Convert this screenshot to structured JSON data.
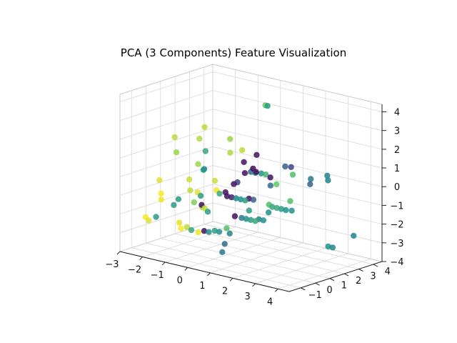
{
  "chart_data": {
    "type": "scatter",
    "title": "PCA (3 Components) Feature Visualization",
    "xlabel": "",
    "ylabel": "",
    "zlabel": "",
    "x_ticks": [
      "−3",
      "−2",
      "−1",
      "0",
      "1",
      "2",
      "3",
      "4"
    ],
    "y_ticks": [
      "−1",
      "0",
      "1",
      "2",
      "3",
      "4"
    ],
    "z_ticks": [
      "−4",
      "−3",
      "−2",
      "−1",
      "0",
      "1",
      "2",
      "3",
      "4"
    ],
    "xlim": [
      -3,
      4.5
    ],
    "ylim": [
      -1.8,
      4.6
    ],
    "zlim": [
      -4,
      4.4
    ],
    "grid": true,
    "colormap": "viridis",
    "marker_alpha": 0.85,
    "points": [
      {
        "x": -2.5,
        "y": 1.2,
        "z": 1.5,
        "c": 0.9
      },
      {
        "x": -2.3,
        "y": 1.0,
        "z": 0.8,
        "c": 0.85
      },
      {
        "x": -2.6,
        "y": 0.3,
        "z": -0.6,
        "c": 0.95
      },
      {
        "x": -2.4,
        "y": 0.1,
        "z": -1.2,
        "c": 1.0
      },
      {
        "x": -2.2,
        "y": -0.2,
        "z": -1.4,
        "c": 0.98
      },
      {
        "x": -2.7,
        "y": -0.5,
        "z": -2.4,
        "c": 1.0
      },
      {
        "x": -2.5,
        "y": -0.6,
        "z": -2.5,
        "c": 0.95
      },
      {
        "x": -2.3,
        "y": -0.4,
        "z": -2.3,
        "c": 0.55
      },
      {
        "x": -1.6,
        "y": 1.5,
        "z": 1.6,
        "c": 0.88
      },
      {
        "x": -1.5,
        "y": 1.7,
        "z": 2.2,
        "c": 0.9
      },
      {
        "x": -1.2,
        "y": 1.3,
        "z": 1.1,
        "c": 0.6
      },
      {
        "x": -1.4,
        "y": 1.1,
        "z": 0.4,
        "c": 0.85
      },
      {
        "x": -1.1,
        "y": 1.0,
        "z": 0.2,
        "c": 0.55
      },
      {
        "x": -1.0,
        "y": 0.9,
        "z": 0.3,
        "c": 0.5
      },
      {
        "x": -1.6,
        "y": 0.8,
        "z": -0.4,
        "c": 0.92
      },
      {
        "x": -1.3,
        "y": 0.4,
        "z": -0.8,
        "c": 0.9
      },
      {
        "x": -1.1,
        "y": 0.6,
        "z": -0.9,
        "c": 0.95
      },
      {
        "x": -0.9,
        "y": 0.5,
        "z": -1.0,
        "c": 0.55
      },
      {
        "x": -1.4,
        "y": -0.2,
        "z": -2.4,
        "c": 0.96
      },
      {
        "x": -1.2,
        "y": -0.4,
        "z": -2.6,
        "c": 1.0
      },
      {
        "x": -1.0,
        "y": -0.3,
        "z": -2.5,
        "c": 0.9
      },
      {
        "x": -0.8,
        "y": -0.3,
        "z": -2.6,
        "c": 0.6
      },
      {
        "x": -1.5,
        "y": -0.1,
        "z": -1.2,
        "c": 0.55
      },
      {
        "x": -1.0,
        "y": 0.2,
        "z": -1.3,
        "c": 0.8
      },
      {
        "x": -0.5,
        "y": 1.9,
        "z": 1.8,
        "c": 0.85
      },
      {
        "x": -0.3,
        "y": 1.6,
        "z": 1.2,
        "c": 0.88
      },
      {
        "x": 0.1,
        "y": 1.8,
        "z": 1.4,
        "c": 0.9
      },
      {
        "x": -0.4,
        "y": 0.7,
        "z": -0.1,
        "c": 0.92
      },
      {
        "x": -0.2,
        "y": 0.5,
        "z": -0.5,
        "c": 0.98
      },
      {
        "x": 0.0,
        "y": 0.4,
        "z": -0.6,
        "c": 0.6
      },
      {
        "x": 0.2,
        "y": 0.5,
        "z": -0.5,
        "c": 0.05
      },
      {
        "x": -0.6,
        "y": 0.1,
        "z": -1.3,
        "c": 0.05
      },
      {
        "x": -0.4,
        "y": 0.0,
        "z": -1.4,
        "c": 0.9
      },
      {
        "x": -0.2,
        "y": -0.1,
        "z": -1.5,
        "c": 0.55
      },
      {
        "x": -0.3,
        "y": -0.6,
        "z": -2.5,
        "c": 0.98
      },
      {
        "x": -0.1,
        "y": -0.5,
        "z": -2.4,
        "c": 0.05
      },
      {
        "x": 0.1,
        "y": -0.5,
        "z": -2.4,
        "c": 0.5
      },
      {
        "x": 0.3,
        "y": -0.4,
        "z": -2.3,
        "c": 0.55
      },
      {
        "x": 0.5,
        "y": -0.4,
        "z": -2.3,
        "c": 0.5
      },
      {
        "x": 0.7,
        "y": -0.2,
        "z": -2.1,
        "c": 0.7
      },
      {
        "x": 0.9,
        "y": -0.3,
        "z": -2.3,
        "c": 0.45
      },
      {
        "x": 1.0,
        "y": 2.0,
        "z": 4.0,
        "c": 0.75
      },
      {
        "x": 1.1,
        "y": 2.0,
        "z": 4.0,
        "c": 0.55
      },
      {
        "x": 0.5,
        "y": 1.3,
        "z": 1.0,
        "c": 0.05
      },
      {
        "x": 0.6,
        "y": 0.7,
        "z": 0.1,
        "c": 0.2
      },
      {
        "x": 0.5,
        "y": 0.6,
        "z": 0.0,
        "c": 0.05
      },
      {
        "x": 0.8,
        "y": 0.9,
        "z": 0.6,
        "c": 0.05
      },
      {
        "x": 1.0,
        "y": 1.0,
        "z": 0.7,
        "c": 0.35
      },
      {
        "x": 1.2,
        "y": 1.0,
        "z": 0.7,
        "c": 0.45
      },
      {
        "x": 1.4,
        "y": 1.1,
        "z": 0.7,
        "c": 0.5
      },
      {
        "x": 1.6,
        "y": 1.1,
        "z": 0.7,
        "c": 0.65
      },
      {
        "x": 0.4,
        "y": 0.3,
        "z": -0.6,
        "c": 0.05
      },
      {
        "x": 0.6,
        "y": 0.3,
        "z": -0.6,
        "c": 0.1
      },
      {
        "x": 0.8,
        "y": 0.3,
        "z": -0.6,
        "c": 0.45
      },
      {
        "x": 1.0,
        "y": 0.3,
        "z": -0.6,
        "c": 0.5
      },
      {
        "x": 1.2,
        "y": 0.3,
        "z": -0.6,
        "c": 0.55
      },
      {
        "x": 1.3,
        "y": 0.4,
        "z": -0.5,
        "c": 0.05
      },
      {
        "x": 1.5,
        "y": 0.4,
        "z": -0.5,
        "c": 0.3
      },
      {
        "x": 1.8,
        "y": 1.1,
        "z": 0.6,
        "c": 0.05
      },
      {
        "x": 2.0,
        "y": 0.8,
        "z": 0.3,
        "c": 0.35
      },
      {
        "x": 2.2,
        "y": 0.9,
        "z": 0.4,
        "c": 0.75
      },
      {
        "x": 2.0,
        "y": 0.7,
        "z": -0.7,
        "c": 0.7
      },
      {
        "x": 1.0,
        "y": -0.1,
        "z": -1.4,
        "c": 0.05
      },
      {
        "x": 1.3,
        "y": -0.1,
        "z": -1.4,
        "c": 0.4
      },
      {
        "x": 1.5,
        "y": -0.1,
        "z": -1.4,
        "c": 0.5
      },
      {
        "x": 1.7,
        "y": -0.1,
        "z": -1.4,
        "c": 0.55
      },
      {
        "x": 1.9,
        "y": -0.1,
        "z": -1.4,
        "c": 0.6
      },
      {
        "x": 2.0,
        "y": 0.0,
        "z": -1.3,
        "c": 0.45
      },
      {
        "x": 2.2,
        "y": 0.0,
        "z": -1.3,
        "c": 0.5
      },
      {
        "x": 2.3,
        "y": 0.2,
        "z": -0.9,
        "c": 0.5
      },
      {
        "x": 1.0,
        "y": -0.8,
        "z": -2.7,
        "c": 0.35
      },
      {
        "x": 1.5,
        "y": 0.1,
        "z": -1.0,
        "c": 0.55
      },
      {
        "x": 2.2,
        "y": 1.5,
        "z": 1.2,
        "c": 0.3
      },
      {
        "x": 2.4,
        "y": 1.6,
        "z": 1.2,
        "c": 0.2
      },
      {
        "x": 2.6,
        "y": 1.4,
        "z": 0.9,
        "c": 0.7
      },
      {
        "x": 3.4,
        "y": 1.4,
        "z": 0.9,
        "c": 0.4
      },
      {
        "x": 3.5,
        "y": 1.2,
        "z": 0.7,
        "c": 0.3
      },
      {
        "x": 4.0,
        "y": 1.6,
        "z": 1.2,
        "c": 0.45
      },
      {
        "x": 4.1,
        "y": 1.5,
        "z": 1.0,
        "c": 0.45
      },
      {
        "x": 1.1,
        "y": 1.0,
        "z": 0.9,
        "c": 0.02
      },
      {
        "x": 1.3,
        "y": 0.9,
        "z": 0.8,
        "c": 0.05
      },
      {
        "x": 1.0,
        "y": 1.4,
        "z": 1.5,
        "c": 0.05
      },
      {
        "x": 2.4,
        "y": 0.3,
        "z": -0.6,
        "c": 0.6
      },
      {
        "x": 2.6,
        "y": 0.3,
        "z": -0.6,
        "c": 0.6
      },
      {
        "x": 2.8,
        "y": 0.3,
        "z": -0.6,
        "c": 0.55
      },
      {
        "x": 3.0,
        "y": 0.3,
        "z": -0.6,
        "c": 0.5
      },
      {
        "x": 3.2,
        "y": 0.4,
        "z": -0.6,
        "c": 0.5
      },
      {
        "x": 3.0,
        "y": 0.6,
        "z": -0.2,
        "c": 0.7
      },
      {
        "x": 4.3,
        "y": 1.2,
        "z": -2.4,
        "c": 0.5
      },
      {
        "x": 4.5,
        "y": 1.2,
        "z": -2.4,
        "c": 0.45
      },
      {
        "x": 4.4,
        "y": 2.8,
        "z": -2.2,
        "c": 0.45
      },
      {
        "x": 0.7,
        "y": -0.5,
        "z": -3.3,
        "c": 0.4
      },
      {
        "x": -1.9,
        "y": 0.2,
        "z": -1.7,
        "c": 0.55
      },
      {
        "x": -0.7,
        "y": 0.3,
        "z": -1.5,
        "c": 0.85
      }
    ]
  }
}
